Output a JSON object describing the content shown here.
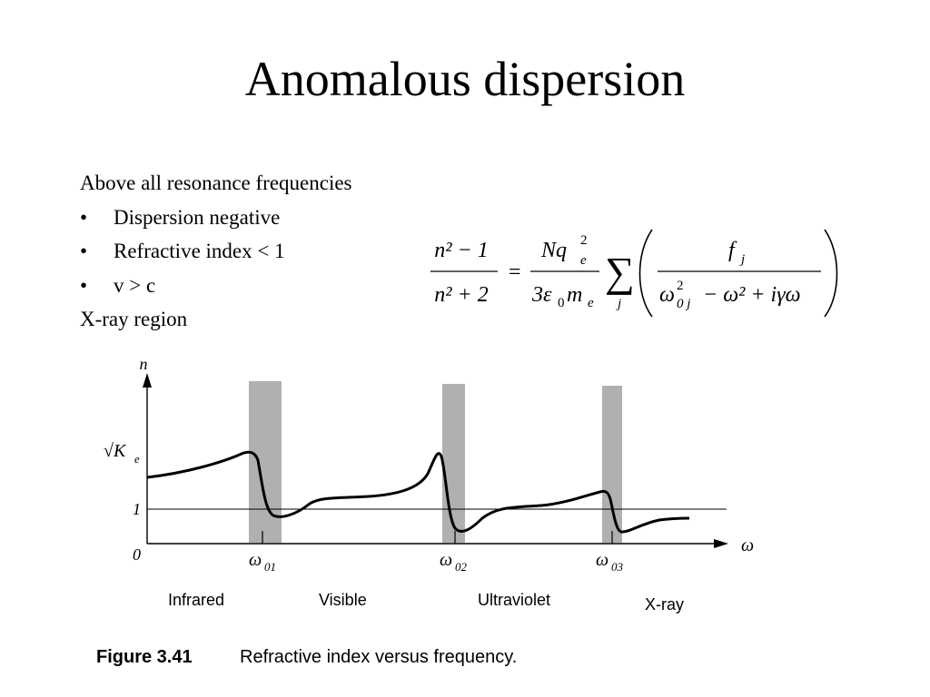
{
  "slide": {
    "title": "Anomalous dispersion",
    "intro": "Above all resonance frequencies",
    "bullets": [
      {
        "marker": "•",
        "text": "Dispersion negative"
      },
      {
        "marker": "•",
        "text": "Refractive index < 1"
      },
      {
        "marker": "•",
        "text": "v > c"
      }
    ],
    "footer_line": "X-ray region"
  },
  "equation": {
    "lhs_num": "n² − 1",
    "lhs_den": "n² + 2",
    "equals": "=",
    "mid_num": "Nq",
    "mid_num_sub": "e",
    "mid_num_sup": "2",
    "mid_den": "3ε",
    "mid_den_sub0": "0",
    "mid_den_m": "m",
    "mid_den_sub_e": "e",
    "sum_symbol": "∑",
    "sum_index": "j",
    "rhs_num": "f",
    "rhs_num_sub": "j",
    "rhs_den_a": "ω",
    "rhs_den_a_sup": "2",
    "rhs_den_a_sub": "0 j",
    "rhs_den_rest": "− ω² + iγω"
  },
  "figure": {
    "y_axis_label": "n",
    "x_axis_label": "ω",
    "y_tick_sqrt_label": "√K",
    "y_tick_sqrt_sub": "e",
    "y_tick_one": "1",
    "y_tick_zero": "0",
    "resonances": [
      {
        "label": "ω",
        "sub": "01"
      },
      {
        "label": "ω",
        "sub": "02"
      },
      {
        "label": "ω",
        "sub": "03"
      }
    ],
    "regions": [
      "Infrared",
      "Visible",
      "Ultraviolet",
      "X-ray"
    ],
    "caption_number": "Figure 3.41",
    "caption_text": "Refractive index versus frequency."
  }
}
